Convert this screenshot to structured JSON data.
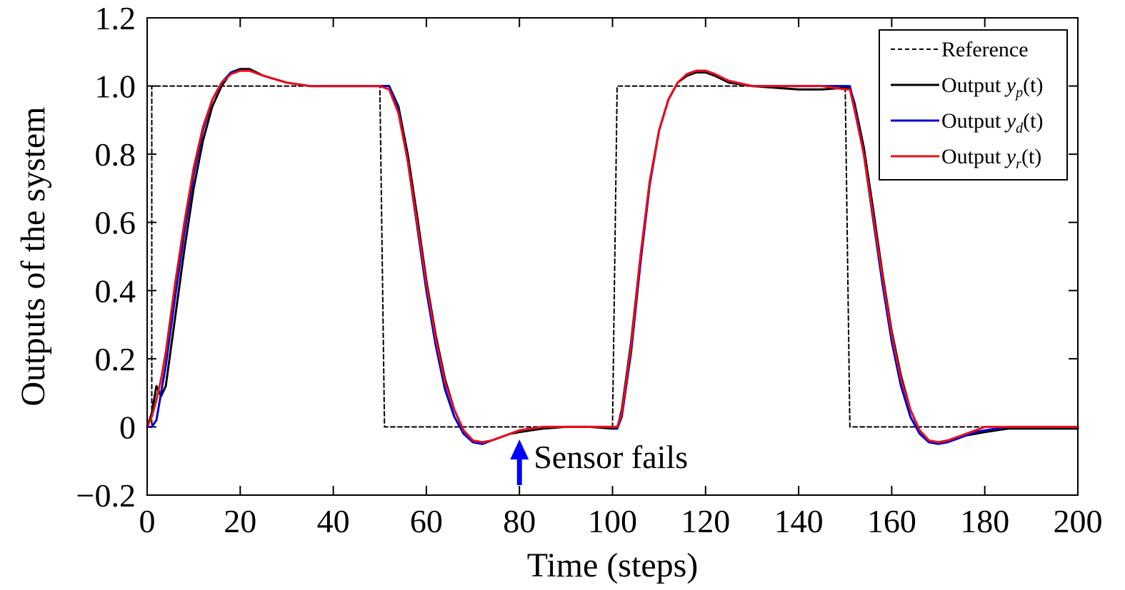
{
  "chart_data": {
    "type": "line",
    "xlabel": "Time (steps)",
    "ylabel": "Outputs of the system",
    "xlim": [
      0,
      200
    ],
    "ylim": [
      -0.2,
      1.2
    ],
    "xticks": [
      0,
      20,
      40,
      60,
      80,
      100,
      120,
      140,
      160,
      180,
      200
    ],
    "xtick_labels": [
      "0",
      "20",
      "40",
      "60",
      "80",
      "100",
      "120",
      "140",
      "160",
      "180",
      "200"
    ],
    "yticks": [
      -0.2,
      0,
      0.2,
      0.4,
      0.6,
      0.8,
      1.0,
      1.2
    ],
    "ytick_labels": [
      "−0.2",
      "0",
      "0.2",
      "0.4",
      "0.6",
      "0.8",
      "1.0",
      "1.2"
    ],
    "grid": false,
    "legend_position": "top-right",
    "series": [
      {
        "name": "Reference",
        "color": "#000000",
        "dash": "dashed",
        "x": [
          0,
          1,
          1,
          50,
          51,
          100,
          101,
          150,
          151,
          200
        ],
        "y": [
          0,
          0,
          1,
          1,
          0,
          0,
          1,
          1,
          0,
          0
        ]
      },
      {
        "name": "Output y_p(t)",
        "legend_prefix": "Output ",
        "legend_var": "y",
        "legend_sub": "p",
        "legend_suffix": "(t)",
        "color": "#000000",
        "x": [
          0,
          1,
          2,
          3,
          4,
          6,
          8,
          10,
          12,
          14,
          16,
          18,
          20,
          22,
          25,
          30,
          35,
          40,
          45,
          50,
          52,
          54,
          56,
          58,
          60,
          62,
          64,
          66,
          68,
          70,
          72,
          74,
          76,
          78,
          80,
          85,
          90,
          95,
          100,
          101,
          102,
          104,
          106,
          108,
          110,
          112,
          114,
          116,
          118,
          120,
          122,
          125,
          130,
          135,
          140,
          145,
          150,
          151,
          152,
          154,
          156,
          158,
          160,
          162,
          164,
          166,
          168,
          170,
          172,
          174,
          176,
          178,
          180,
          185,
          190,
          195,
          200
        ],
        "y": [
          0,
          0.04,
          0.12,
          0.09,
          0.12,
          0.32,
          0.52,
          0.7,
          0.84,
          0.94,
          1.0,
          1.04,
          1.05,
          1.05,
          1.03,
          1.01,
          1.0,
          1.0,
          1.0,
          1.0,
          1.0,
          0.94,
          0.8,
          0.62,
          0.43,
          0.27,
          0.14,
          0.05,
          -0.01,
          -0.04,
          -0.045,
          -0.04,
          -0.03,
          -0.02,
          -0.015,
          -0.005,
          0.0,
          0.0,
          -0.005,
          -0.005,
          0.05,
          0.25,
          0.5,
          0.72,
          0.87,
          0.96,
          1.01,
          1.03,
          1.04,
          1.04,
          1.03,
          1.01,
          1.0,
          0.995,
          0.99,
          0.99,
          0.995,
          0.995,
          0.95,
          0.82,
          0.64,
          0.45,
          0.28,
          0.15,
          0.05,
          -0.01,
          -0.04,
          -0.045,
          -0.04,
          -0.03,
          -0.025,
          -0.02,
          -0.015,
          -0.005,
          -0.005,
          -0.005,
          -0.005
        ]
      },
      {
        "name": "Output y_d(t)",
        "legend_prefix": "Output ",
        "legend_var": "y",
        "legend_sub": "d",
        "legend_suffix": "(t)",
        "color": "#0000cc",
        "x": [
          0,
          1,
          2,
          3,
          4,
          6,
          8,
          10,
          12,
          14,
          16,
          18,
          20,
          22,
          25,
          30,
          35,
          40,
          45,
          50,
          52,
          54,
          56,
          58,
          60,
          62,
          64,
          66,
          68,
          70,
          72,
          74,
          76,
          78,
          80,
          85,
          90,
          95,
          100,
          101,
          102,
          104,
          106,
          108,
          110,
          112,
          114,
          116,
          118,
          120,
          122,
          125,
          130,
          135,
          140,
          145,
          150,
          151,
          152,
          154,
          156,
          158,
          160,
          162,
          164,
          166,
          168,
          170,
          172,
          174,
          176,
          178,
          180,
          185,
          190,
          195,
          200
        ],
        "y": [
          0,
          0,
          0.02,
          0.1,
          0.18,
          0.38,
          0.57,
          0.74,
          0.87,
          0.96,
          1.01,
          1.04,
          1.045,
          1.045,
          1.03,
          1.01,
          1.0,
          1.0,
          1.0,
          1.0,
          1.0,
          0.93,
          0.78,
          0.59,
          0.4,
          0.24,
          0.11,
          0.03,
          -0.02,
          -0.045,
          -0.05,
          -0.04,
          -0.03,
          -0.02,
          -0.01,
          0.0,
          0.0,
          0.0,
          0.0,
          -0.005,
          0.03,
          0.22,
          0.48,
          0.71,
          0.87,
          0.96,
          1.01,
          1.035,
          1.045,
          1.045,
          1.035,
          1.015,
          1.0,
          1.0,
          1.0,
          1.0,
          1.0,
          1.0,
          0.94,
          0.8,
          0.61,
          0.42,
          0.25,
          0.12,
          0.03,
          -0.02,
          -0.045,
          -0.05,
          -0.045,
          -0.035,
          -0.025,
          -0.015,
          -0.01,
          0.0,
          0.0,
          0.0,
          0.0
        ]
      },
      {
        "name": "Output y_r(t)",
        "legend_prefix": "Output ",
        "legend_var": "y",
        "legend_sub": "r",
        "legend_suffix": "(t)",
        "color": "#e8101a",
        "x": [
          0,
          1,
          2,
          3,
          4,
          6,
          8,
          10,
          12,
          14,
          16,
          18,
          20,
          22,
          25,
          30,
          35,
          40,
          45,
          50,
          52,
          54,
          56,
          58,
          60,
          62,
          64,
          66,
          68,
          70,
          72,
          74,
          76,
          78,
          80,
          85,
          90,
          95,
          100,
          101,
          102,
          104,
          106,
          108,
          110,
          112,
          114,
          116,
          118,
          120,
          122,
          125,
          130,
          135,
          140,
          145,
          150,
          151,
          152,
          154,
          156,
          158,
          160,
          162,
          164,
          166,
          168,
          170,
          172,
          174,
          176,
          178,
          180,
          185,
          190,
          195,
          200
        ],
        "y": [
          0,
          0.03,
          0.08,
          0.14,
          0.22,
          0.42,
          0.6,
          0.76,
          0.88,
          0.96,
          1.01,
          1.035,
          1.045,
          1.045,
          1.03,
          1.01,
          1.0,
          1.0,
          1.0,
          1.0,
          0.99,
          0.92,
          0.78,
          0.6,
          0.42,
          0.26,
          0.13,
          0.05,
          -0.01,
          -0.04,
          -0.045,
          -0.04,
          -0.03,
          -0.02,
          -0.01,
          0.0,
          0.0,
          0.0,
          0.0,
          0.0,
          0.04,
          0.24,
          0.5,
          0.72,
          0.87,
          0.96,
          1.01,
          1.035,
          1.045,
          1.045,
          1.035,
          1.015,
          1.0,
          1.0,
          1.0,
          1.0,
          0.99,
          0.99,
          0.93,
          0.8,
          0.62,
          0.44,
          0.27,
          0.14,
          0.05,
          -0.01,
          -0.04,
          -0.045,
          -0.04,
          -0.03,
          -0.02,
          -0.01,
          0.0,
          0.0,
          0.0,
          0.0,
          0.0
        ]
      }
    ],
    "annotations": [
      {
        "text": "Sensor fails",
        "x": 80,
        "y": -0.02,
        "arrow_color": "#0000ff"
      }
    ]
  }
}
